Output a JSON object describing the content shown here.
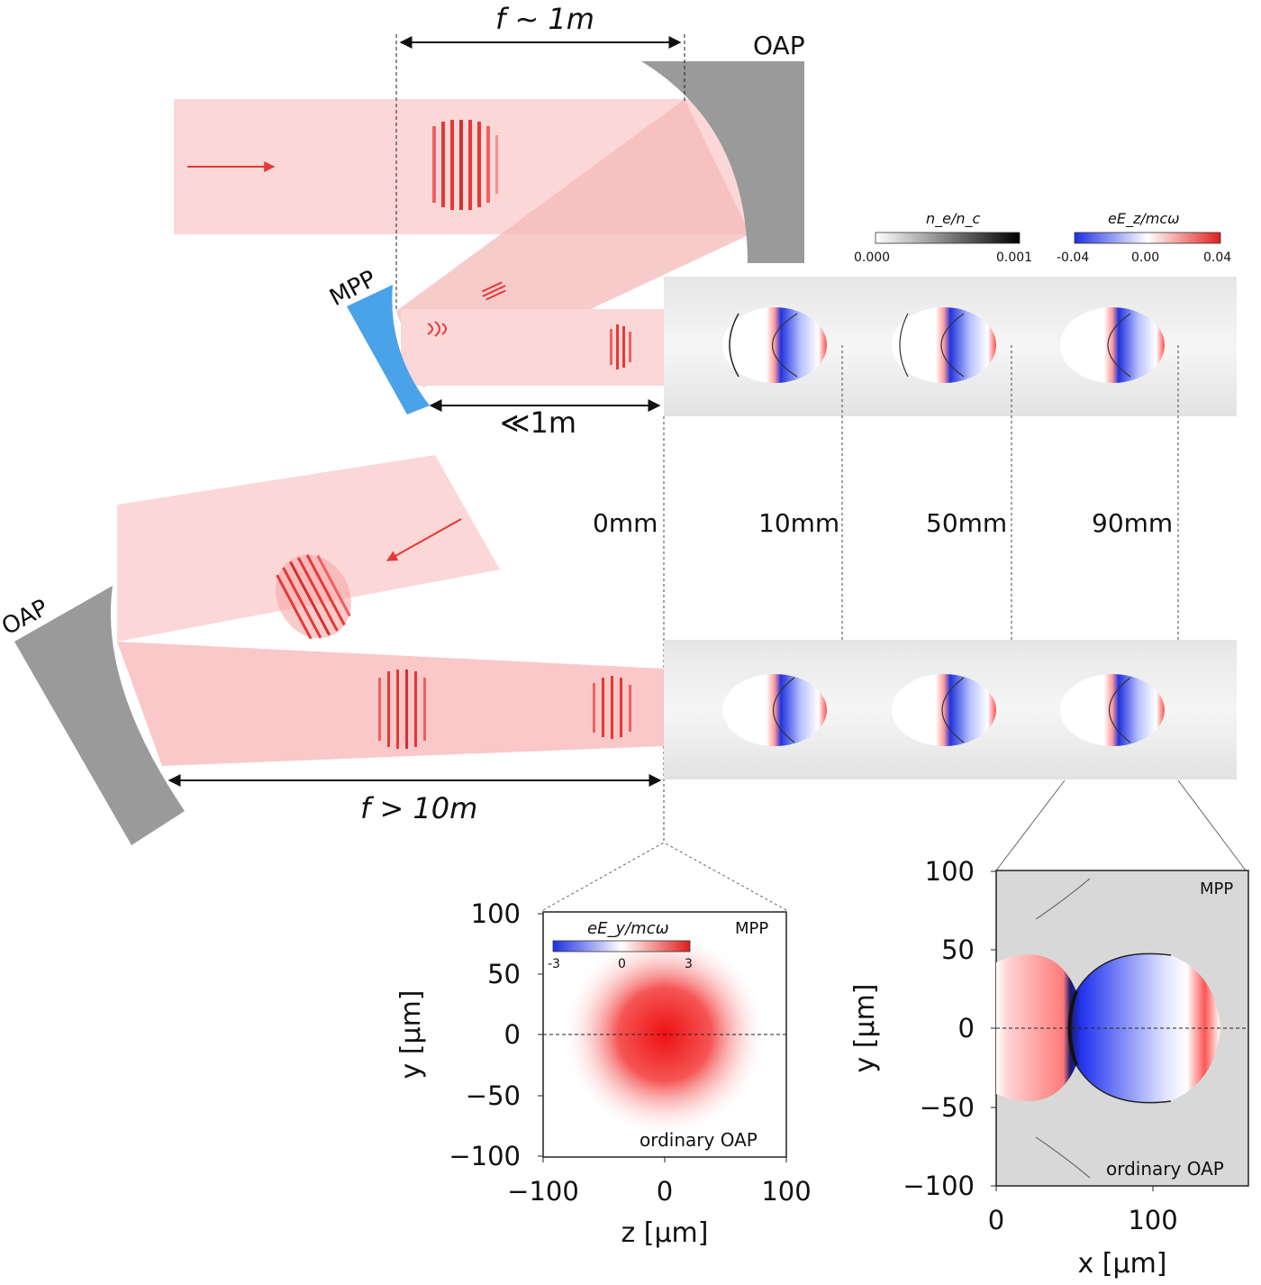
{
  "labels": {
    "top_focal": "f ~ 1m",
    "top_oap": "OAP",
    "mpp": "MPP",
    "short_distance": "≪1m",
    "bottom_oap": "OAP",
    "bottom_focal": "f > 10m"
  },
  "distances": [
    "0mm",
    "10mm",
    "50mm",
    "90mm"
  ],
  "colorbars": {
    "density": {
      "label": "n_e/n_c",
      "ticks": [
        "0.000",
        "0.001"
      ]
    },
    "field_top": {
      "label": "eE_z/mcω",
      "ticks": [
        "-0.04",
        "0.00",
        "0.04"
      ]
    },
    "field_inset": {
      "label": "eE_y/mcω",
      "ticks": [
        "-3",
        "0",
        "3"
      ]
    }
  },
  "inset_left": {
    "xlabel": "z [μm]",
    "ylabel": "y [μm]",
    "x_ticks": [
      "−100",
      "0",
      "100"
    ],
    "y_ticks": [
      "100",
      "50",
      "0",
      "−50",
      "−100"
    ],
    "corner_top": "MPP",
    "corner_bottom": "ordinary OAP"
  },
  "inset_right": {
    "xlabel": "x [μm]",
    "ylabel": "y [μm]",
    "x_ticks": [
      "0",
      "100"
    ],
    "y_ticks": [
      "100",
      "50",
      "0",
      "−50",
      "−100"
    ],
    "corner_top": "MPP",
    "corner_bottom": "ordinary OAP"
  },
  "colors": {
    "beam": "#f9c9c9",
    "pulse": "#e53935",
    "mirror_gray": "#999999",
    "mpp_blue": "#4aa3e8",
    "field_blue": "#1f3fe0",
    "field_red": "#e01f1f"
  }
}
